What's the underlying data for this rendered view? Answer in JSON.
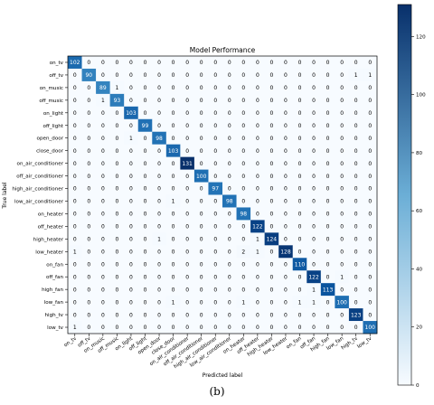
{
  "caption": "(b)",
  "chart_data": {
    "type": "heatmap",
    "title": "Model Performance",
    "xlabel": "Predicted label",
    "ylabel": "True label",
    "labels": [
      "on_tv",
      "off_tv",
      "on_music",
      "off_music",
      "on_light",
      "off_light",
      "open_door",
      "close_door",
      "on_air_conditioner",
      "off_air_conditioner",
      "high_air_conditioner",
      "low_air_conditioner",
      "on_heater",
      "off_heater",
      "high_heater",
      "low_heater",
      "on_fan",
      "off_fan",
      "high_fan",
      "low_fan",
      "high_tv",
      "low_tv"
    ],
    "matrix": [
      [
        102,
        0,
        0,
        0,
        0,
        0,
        0,
        0,
        0,
        0,
        0,
        0,
        0,
        0,
        0,
        0,
        0,
        0,
        0,
        0,
        0,
        0
      ],
      [
        0,
        90,
        0,
        0,
        0,
        0,
        0,
        0,
        0,
        0,
        0,
        0,
        0,
        0,
        0,
        0,
        0,
        0,
        0,
        0,
        1,
        1
      ],
      [
        0,
        0,
        89,
        1,
        0,
        0,
        0,
        0,
        0,
        0,
        0,
        0,
        0,
        0,
        0,
        0,
        0,
        0,
        0,
        0,
        0,
        0
      ],
      [
        0,
        0,
        1,
        93,
        0,
        0,
        0,
        0,
        0,
        0,
        0,
        0,
        0,
        0,
        0,
        0,
        0,
        0,
        0,
        0,
        0,
        0
      ],
      [
        0,
        0,
        0,
        0,
        103,
        0,
        0,
        0,
        0,
        0,
        0,
        0,
        0,
        0,
        0,
        0,
        0,
        0,
        0,
        0,
        0,
        0
      ],
      [
        0,
        0,
        0,
        0,
        0,
        99,
        0,
        0,
        0,
        0,
        0,
        0,
        0,
        0,
        0,
        0,
        0,
        0,
        0,
        0,
        0,
        0
      ],
      [
        0,
        0,
        0,
        0,
        1,
        0,
        98,
        0,
        0,
        0,
        0,
        0,
        0,
        0,
        0,
        0,
        0,
        0,
        0,
        0,
        0,
        0
      ],
      [
        0,
        0,
        0,
        0,
        0,
        0,
        0,
        103,
        0,
        0,
        0,
        0,
        0,
        0,
        0,
        0,
        0,
        0,
        0,
        0,
        0,
        0
      ],
      [
        0,
        0,
        0,
        0,
        0,
        0,
        0,
        0,
        131,
        0,
        0,
        0,
        0,
        0,
        0,
        0,
        0,
        0,
        0,
        0,
        0,
        0
      ],
      [
        0,
        0,
        0,
        0,
        0,
        0,
        0,
        0,
        0,
        100,
        0,
        0,
        0,
        0,
        0,
        0,
        0,
        0,
        0,
        0,
        0,
        0
      ],
      [
        0,
        0,
        0,
        0,
        0,
        0,
        0,
        0,
        0,
        0,
        97,
        0,
        0,
        0,
        0,
        0,
        0,
        0,
        0,
        0,
        0,
        0
      ],
      [
        0,
        0,
        0,
        0,
        0,
        0,
        0,
        1,
        0,
        0,
        0,
        98,
        0,
        0,
        0,
        0,
        0,
        0,
        0,
        0,
        0,
        0
      ],
      [
        0,
        0,
        0,
        0,
        0,
        0,
        0,
        0,
        0,
        0,
        0,
        0,
        98,
        0,
        0,
        0,
        0,
        0,
        0,
        0,
        0,
        0
      ],
      [
        0,
        0,
        0,
        0,
        0,
        0,
        0,
        0,
        0,
        0,
        0,
        0,
        0,
        122,
        0,
        0,
        0,
        0,
        0,
        0,
        0,
        0
      ],
      [
        0,
        0,
        0,
        0,
        0,
        0,
        1,
        0,
        0,
        0,
        0,
        0,
        0,
        1,
        124,
        0,
        0,
        0,
        0,
        0,
        0,
        0
      ],
      [
        1,
        0,
        0,
        0,
        0,
        0,
        0,
        0,
        0,
        0,
        0,
        0,
        2,
        1,
        0,
        128,
        0,
        0,
        0,
        0,
        0,
        0
      ],
      [
        0,
        0,
        0,
        0,
        0,
        0,
        0,
        0,
        0,
        0,
        0,
        0,
        0,
        0,
        0,
        0,
        110,
        0,
        0,
        0,
        0,
        0
      ],
      [
        0,
        0,
        0,
        0,
        0,
        0,
        0,
        0,
        0,
        0,
        0,
        0,
        0,
        0,
        0,
        0,
        0,
        122,
        0,
        1,
        0,
        0
      ],
      [
        0,
        0,
        0,
        0,
        0,
        0,
        0,
        0,
        0,
        0,
        0,
        0,
        0,
        0,
        0,
        0,
        0,
        1,
        113,
        0,
        0,
        0
      ],
      [
        0,
        0,
        0,
        0,
        0,
        0,
        0,
        1,
        0,
        0,
        0,
        0,
        1,
        0,
        0,
        0,
        1,
        1,
        0,
        100,
        0,
        0
      ],
      [
        0,
        0,
        0,
        0,
        0,
        0,
        0,
        0,
        0,
        0,
        0,
        0,
        0,
        0,
        0,
        0,
        0,
        0,
        0,
        0,
        123,
        0
      ],
      [
        1,
        0,
        0,
        0,
        0,
        0,
        0,
        0,
        0,
        0,
        0,
        0,
        0,
        0,
        0,
        0,
        0,
        0,
        0,
        0,
        0,
        100
      ]
    ],
    "colorbar": {
      "min": 0,
      "max": 131,
      "ticks": [
        0,
        20,
        40,
        60,
        80,
        100,
        120
      ]
    },
    "colormap": {
      "low": "#f7fbff",
      "mid": "#6baed6",
      "high": "#08306b"
    },
    "grid": false
  }
}
